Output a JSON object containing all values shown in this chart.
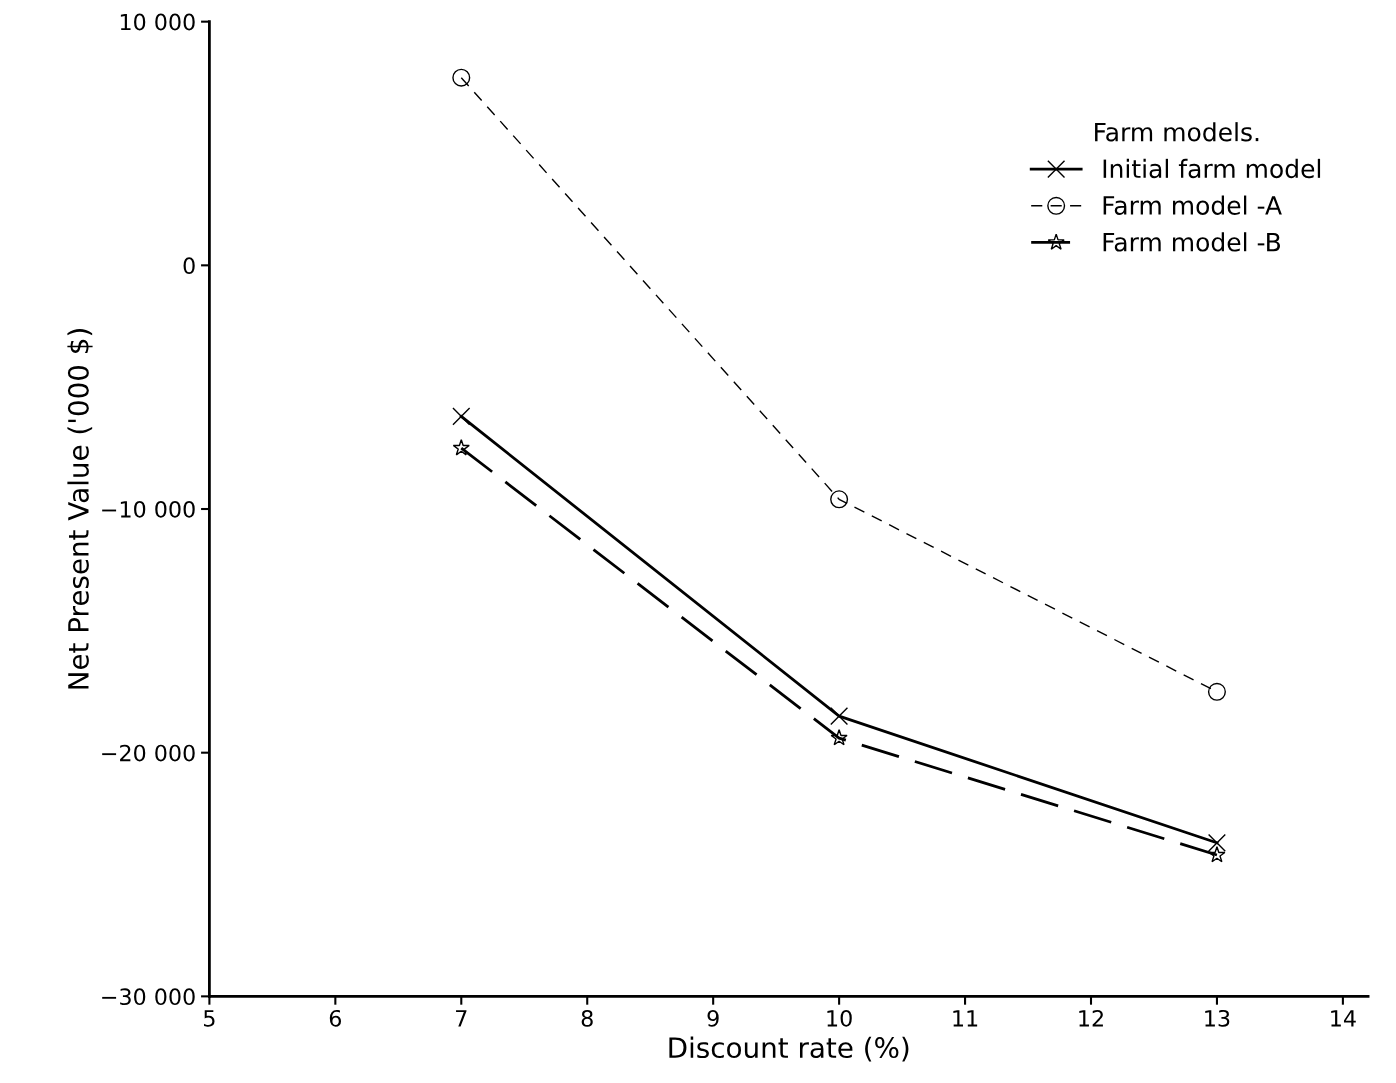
{
  "chart_data": {
    "type": "line",
    "xlabel": "Discount rate (%)",
    "ylabel": "Net Present Value ('000 $)",
    "legend_title": "Farm models.",
    "x": [
      7,
      10,
      13
    ],
    "series": [
      {
        "name": "Initial farm model",
        "color": "#000000",
        "values": [
          -6200,
          -18500,
          -23700
        ],
        "marker": "cross",
        "line_style": "solid"
      },
      {
        "name": "Farm model -A",
        "color": "#000000",
        "values": [
          7700,
          -9600,
          -17500
        ],
        "marker": "circle",
        "line_style": "dashed"
      },
      {
        "name": "Farm model -B",
        "color": "#000000",
        "values": [
          -7500,
          -19400,
          -24200
        ],
        "marker": "star",
        "line_style": "dashed"
      }
    ],
    "xlim": [
      5,
      14.2
    ],
    "xticks": [
      5,
      6,
      7,
      8,
      9,
      10,
      11,
      12,
      13,
      14
    ],
    "ylim": [
      -30000,
      10000
    ],
    "yticks": [
      {
        "value": -30000,
        "label": "−30 000"
      },
      {
        "value": -20000,
        "label": "−20 000"
      },
      {
        "value": -10000,
        "label": "−10 000"
      },
      0,
      {
        "value": 10000,
        "label": "10 000"
      }
    ],
    "grid": false,
    "legend": "top right"
  }
}
